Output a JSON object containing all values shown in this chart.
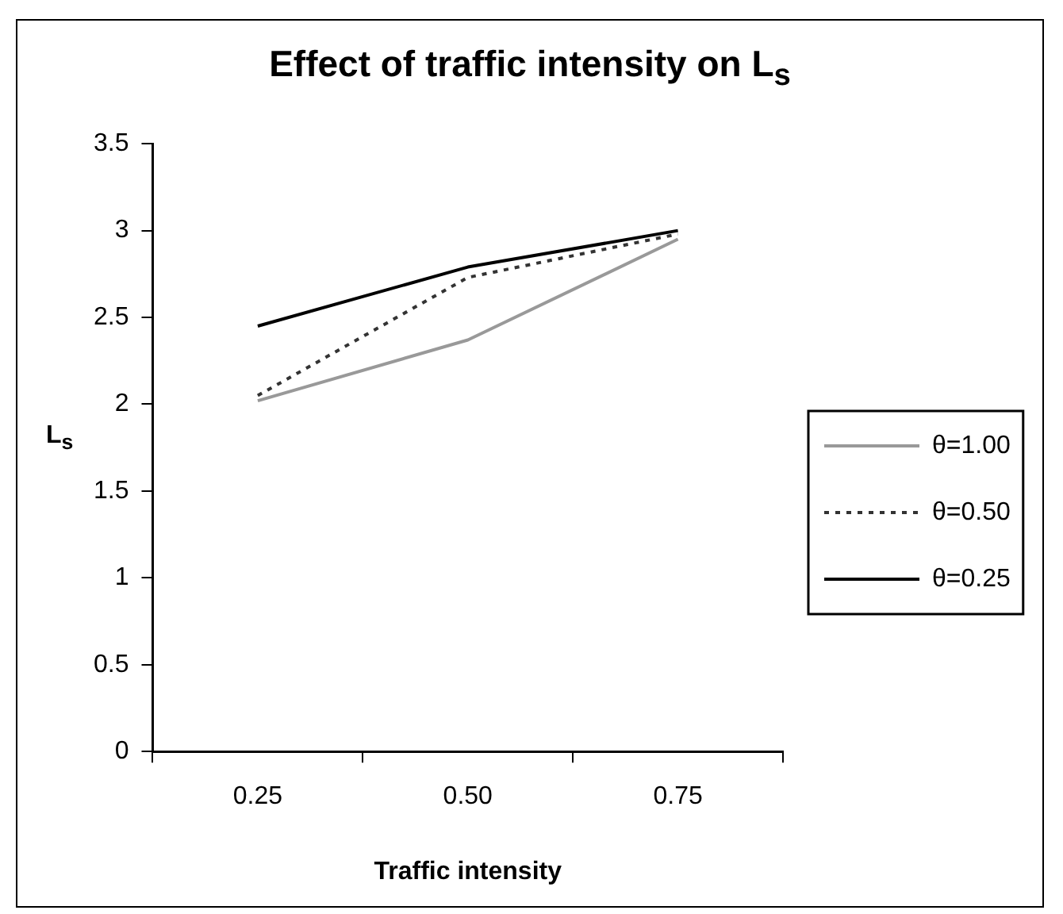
{
  "chart_data": {
    "type": "line",
    "title": "Effect of traffic intensity on L$_{s}$",
    "xlabel": "Traffic intensity",
    "ylabel": "L$_{s}$",
    "categories": [
      "0.25",
      "0.50",
      "0.75"
    ],
    "series": [
      {
        "name": "θ=1.00",
        "color": "#999999",
        "line_style": "solid",
        "values": [
          2.02,
          2.37,
          2.95
        ]
      },
      {
        "name": "θ=0.50",
        "color": "#333333",
        "line_style": "dotted",
        "values": [
          2.05,
          2.73,
          2.98
        ]
      },
      {
        "name": "θ=0.25",
        "color": "#000000",
        "line_style": "solid",
        "values": [
          2.45,
          2.79,
          3.0
        ]
      }
    ],
    "ylim": [
      0,
      3.5
    ],
    "yticks": [
      0,
      0.5,
      1,
      1.5,
      2,
      2.5,
      3,
      3.5
    ],
    "grid": false,
    "legend": "right",
    "marker": "none"
  }
}
